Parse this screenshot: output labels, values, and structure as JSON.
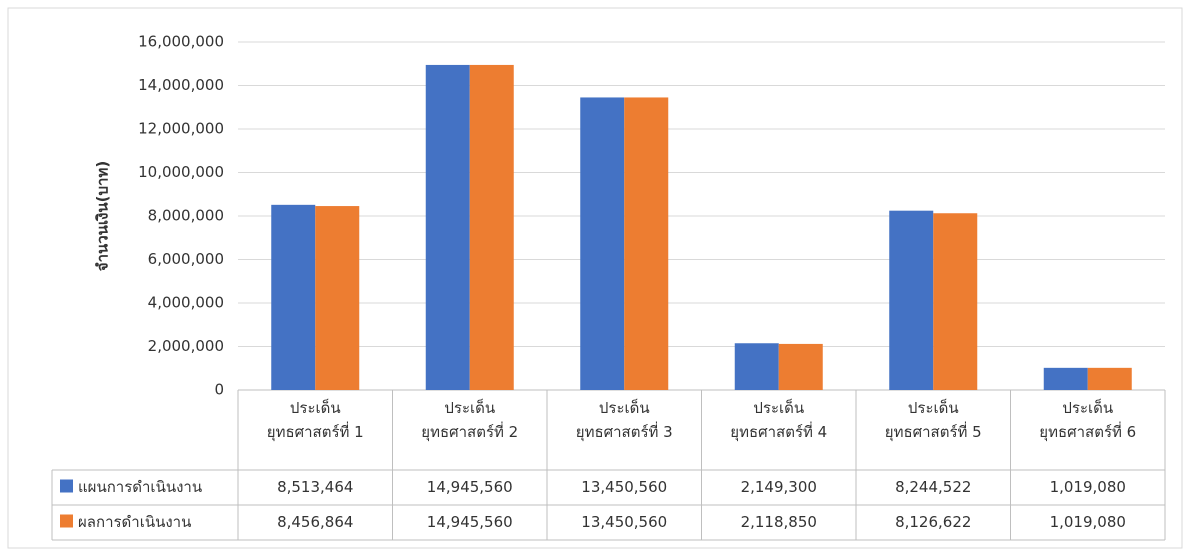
{
  "chart_data": {
    "type": "bar",
    "y_axis_label": "จำนวนเงิน(บาท)",
    "categories": [
      "ประเด็น\nยุทธศาสตร์ที่ 1",
      "ประเด็น\nยุทธศาสตร์ที่ 2",
      "ประเด็น\nยุทธศาสตร์ที่ 3",
      "ประเด็น\nยุทธศาสตร์ที่ 4",
      "ประเด็น\nยุทธศาสตร์ที่ 5",
      "ประเด็น\nยุทธศาสตร์ที่ 6"
    ],
    "series": [
      {
        "name": "แผนการดำเนินงาน",
        "color": "#4472c4",
        "values": [
          8513464,
          14945560,
          13450560,
          2149300,
          8244522,
          1019080
        ],
        "value_labels": [
          "8,513,464",
          "14,945,560",
          "13,450,560",
          "2,149,300",
          "8,244,522",
          "1,019,080"
        ]
      },
      {
        "name": "ผลการดำเนินงาน",
        "color": "#ed7d31",
        "values": [
          8456864,
          14945560,
          13450560,
          2118850,
          8126622,
          1019080
        ],
        "value_labels": [
          "8,456,864",
          "14,945,560",
          "13,450,560",
          "2,118,850",
          "8,126,622",
          "1,019,080"
        ]
      }
    ],
    "ylim": [
      0,
      16000000
    ],
    "yticks": [
      0,
      {
        "value": 2000000,
        "label": "2,000,000"
      },
      {
        "value": 4000000,
        "label": "4,000,000"
      },
      {
        "value": 6000000,
        "label": "6,000,000"
      },
      {
        "value": 8000000,
        "label": "8,000,000"
      },
      {
        "value": 10000000,
        "label": "10,000,000"
      },
      {
        "value": 12000000,
        "label": "12,000,000"
      },
      {
        "value": 14000000,
        "label": "14,000,000"
      },
      {
        "value": 16000000,
        "label": "16,000,000"
      }
    ],
    "grid": true
  }
}
